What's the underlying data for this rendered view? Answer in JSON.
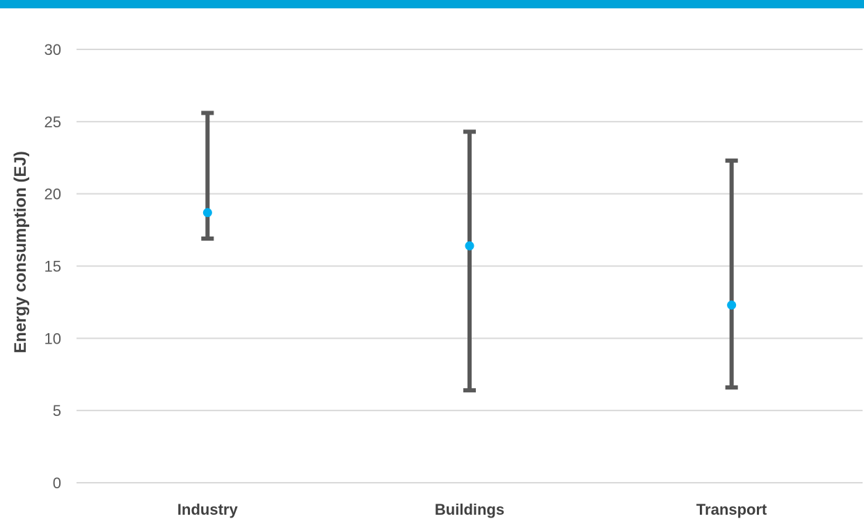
{
  "colors": {
    "top_bar": "#00a3d9",
    "gridline": "#d9d9d9",
    "error_bar": "#595959",
    "point": "#00b0f0"
  },
  "chart_data": {
    "type": "scatter",
    "title": "",
    "xlabel": "",
    "ylabel": "Energy consumption (EJ)",
    "ylim": [
      0,
      30
    ],
    "yticks": [
      0,
      5,
      10,
      15,
      20,
      25,
      30
    ],
    "grid": true,
    "categories": [
      "Industry",
      "Buildings",
      "Transport"
    ],
    "series": [
      {
        "values": [
          18.7,
          16.4,
          12.3
        ],
        "error_low": [
          16.9,
          6.4,
          6.6
        ],
        "error_high": [
          25.6,
          24.3,
          22.3
        ]
      }
    ]
  }
}
